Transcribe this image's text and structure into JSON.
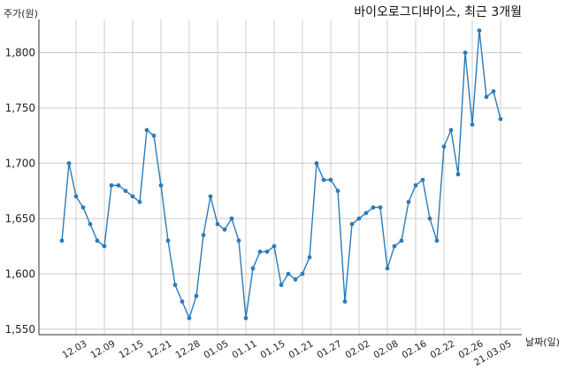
{
  "chart_data": {
    "type": "line",
    "title": "바이오로그디바이스, 최근 3개월",
    "ylabel": "주가(원)",
    "xlabel": "날짜(일)",
    "ylim": [
      1545,
      1830
    ],
    "yticks": [
      1550,
      1600,
      1650,
      1700,
      1750,
      1800
    ],
    "ytick_labels": [
      "1,550",
      "1,600",
      "1,650",
      "1,700",
      "1,750",
      "1,800"
    ],
    "grid": true,
    "color": "#2b7bb9",
    "xtick_labels": [
      "12.03",
      "12.09",
      "12.15",
      "12.21",
      "12.28",
      "01.05",
      "01.11",
      "01.15",
      "01.21",
      "01.27",
      "02.02",
      "02.08",
      "02.16",
      "02.22",
      "02.26",
      "21.03.05"
    ],
    "xtick_index": [
      2,
      6,
      10,
      14,
      18,
      22,
      26,
      30,
      34,
      38,
      42,
      46,
      50,
      54,
      58,
      62
    ],
    "values": [
      1630,
      1700,
      1670,
      1660,
      1645,
      1630,
      1625,
      1680,
      1680,
      1675,
      1670,
      1665,
      1730,
      1725,
      1680,
      1630,
      1590,
      1575,
      1560,
      1580,
      1635,
      1670,
      1645,
      1640,
      1650,
      1630,
      1560,
      1605,
      1620,
      1620,
      1625,
      1590,
      1600,
      1595,
      1600,
      1615,
      1700,
      1685,
      1685,
      1675,
      1575,
      1645,
      1650,
      1655,
      1660,
      1660,
      1605,
      1625,
      1630,
      1665,
      1680,
      1685,
      1650,
      1630,
      1715,
      1730,
      1690,
      1800,
      1735,
      1820,
      1760,
      1765,
      1740
    ]
  }
}
